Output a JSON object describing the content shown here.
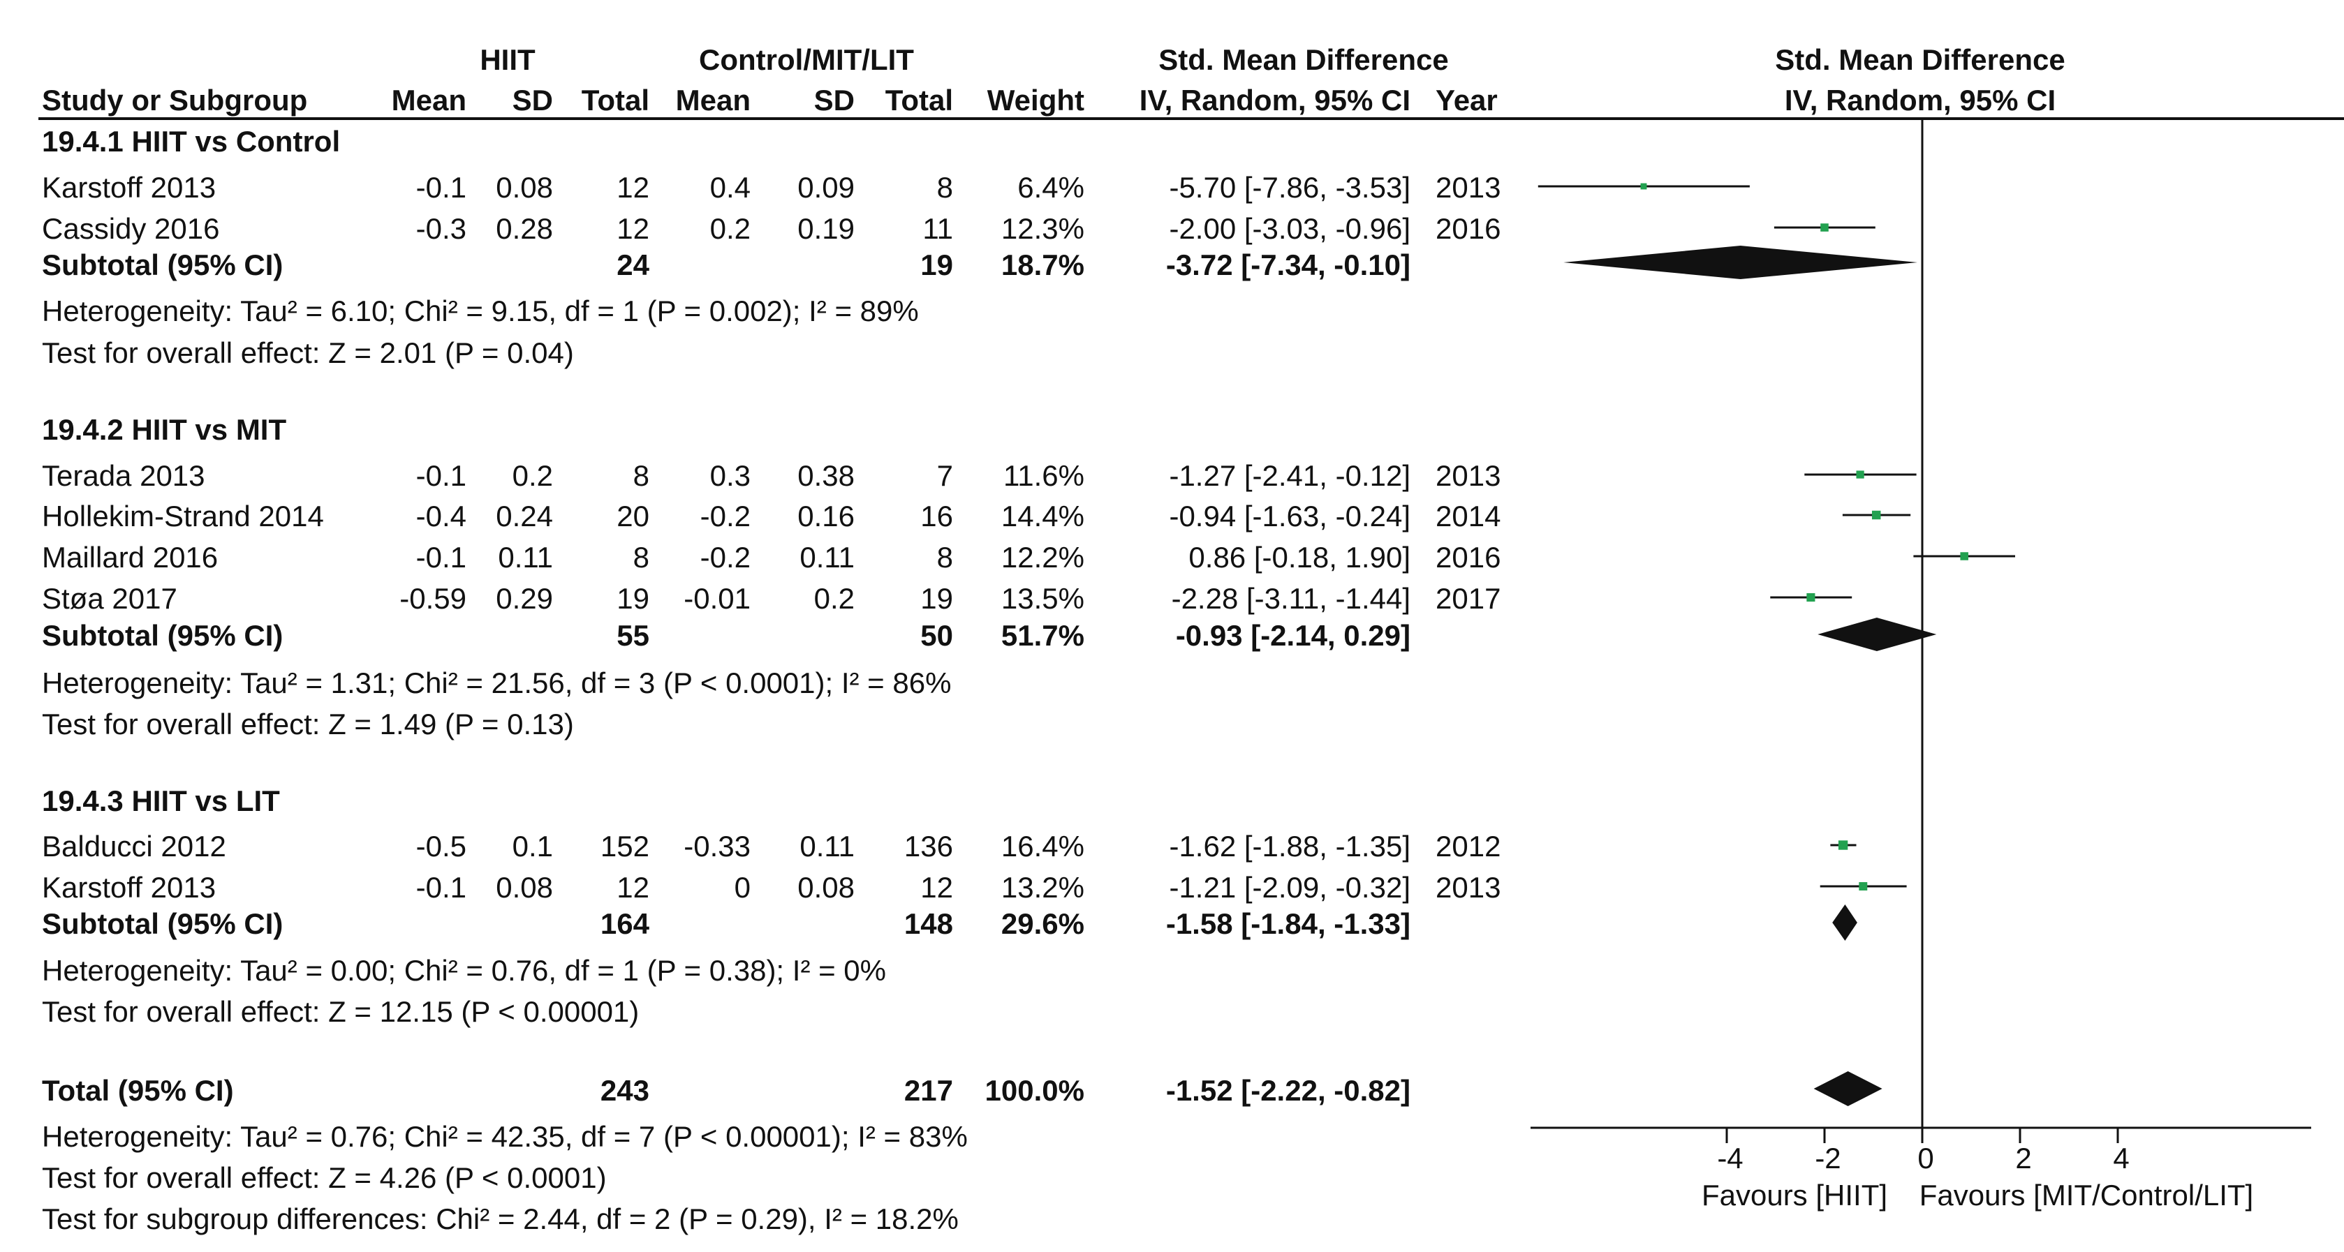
{
  "headers": {
    "hiit": "HIIT",
    "control": "Control/MIT/LIT",
    "smd_table": "Std. Mean Difference",
    "smd_table_sub": "IV, Random, 95% CI",
    "smd_plot": "Std. Mean Difference",
    "smd_plot_sub": "IV, Random, 95% CI",
    "study": "Study or Subgroup",
    "mean1": "Mean",
    "sd1": "SD",
    "total1": "Total",
    "mean2": "Mean",
    "sd2": "SD",
    "total2": "Total",
    "weight": "Weight",
    "year": "Year"
  },
  "groups": [
    {
      "title": "19.4.1 HIIT vs Control",
      "studies": [
        {
          "name": "Karstoff 2013",
          "m1": "-0.1",
          "sd1": "0.08",
          "n1": "12",
          "m2": "0.4",
          "sd2": "0.09",
          "n2": "8",
          "weight": "6.4%",
          "ci": "-5.70 [-7.86, -3.53]",
          "year": "2013"
        },
        {
          "name": "Cassidy 2016",
          "m1": "-0.3",
          "sd1": "0.28",
          "n1": "12",
          "m2": "0.2",
          "sd2": "0.19",
          "n2": "11",
          "weight": "12.3%",
          "ci": "-2.00 [-3.03, -0.96]",
          "year": "2016"
        }
      ],
      "subtotal": {
        "label": "Subtotal (95% CI)",
        "n1": "24",
        "n2": "19",
        "weight": "18.7%",
        "ci": "-3.72 [-7.34, -0.10]"
      },
      "het": "Heterogeneity: Tau² = 6.10; Chi² = 9.15, df = 1 (P = 0.002); I² = 89%",
      "effect": "Test for overall effect: Z = 2.01 (P = 0.04)"
    },
    {
      "title": "19.4.2 HIIT vs MIT",
      "studies": [
        {
          "name": "Terada 2013",
          "m1": "-0.1",
          "sd1": "0.2",
          "n1": "8",
          "m2": "0.3",
          "sd2": "0.38",
          "n2": "7",
          "weight": "11.6%",
          "ci": "-1.27 [-2.41, -0.12]",
          "year": "2013"
        },
        {
          "name": "Hollekim-Strand 2014",
          "m1": "-0.4",
          "sd1": "0.24",
          "n1": "20",
          "m2": "-0.2",
          "sd2": "0.16",
          "n2": "16",
          "weight": "14.4%",
          "ci": "-0.94 [-1.63, -0.24]",
          "year": "2014"
        },
        {
          "name": "Maillard 2016",
          "m1": "-0.1",
          "sd1": "0.11",
          "n1": "8",
          "m2": "-0.2",
          "sd2": "0.11",
          "n2": "8",
          "weight": "12.2%",
          "ci": "0.86 [-0.18, 1.90]",
          "year": "2016"
        },
        {
          "name": "Støa 2017",
          "m1": "-0.59",
          "sd1": "0.29",
          "n1": "19",
          "m2": "-0.01",
          "sd2": "0.2",
          "n2": "19",
          "weight": "13.5%",
          "ci": "-2.28 [-3.11, -1.44]",
          "year": "2017"
        }
      ],
      "subtotal": {
        "label": "Subtotal (95% CI)",
        "n1": "55",
        "n2": "50",
        "weight": "51.7%",
        "ci": "-0.93 [-2.14, 0.29]"
      },
      "het": "Heterogeneity: Tau² = 1.31; Chi² = 21.56, df = 3 (P < 0.0001); I² = 86%",
      "effect": "Test for overall effect: Z = 1.49 (P = 0.13)"
    },
    {
      "title": "19.4.3 HIIT vs LIT",
      "studies": [
        {
          "name": "Balducci 2012",
          "m1": "-0.5",
          "sd1": "0.1",
          "n1": "152",
          "m2": "-0.33",
          "sd2": "0.11",
          "n2": "136",
          "weight": "16.4%",
          "ci": "-1.62 [-1.88, -1.35]",
          "year": "2012"
        },
        {
          "name": "Karstoff 2013",
          "m1": "-0.1",
          "sd1": "0.08",
          "n1": "12",
          "m2": "0",
          "sd2": "0.08",
          "n2": "12",
          "weight": "13.2%",
          "ci": "-1.21 [-2.09, -0.32]",
          "year": "2013"
        }
      ],
      "subtotal": {
        "label": "Subtotal (95% CI)",
        "n1": "164",
        "n2": "148",
        "weight": "29.6%",
        "ci": "-1.58 [-1.84, -1.33]"
      },
      "het": "Heterogeneity: Tau² = 0.00; Chi² = 0.76, df = 1 (P = 0.38); I² = 0%",
      "effect": "Test for overall effect: Z = 12.15 (P < 0.00001)"
    }
  ],
  "total": {
    "label": "Total (95% CI)",
    "n1": "243",
    "n2": "217",
    "weight": "100.0%",
    "ci": "-1.52 [-2.22, -0.82]"
  },
  "total_het": "Heterogeneity: Tau² = 0.76; Chi² = 42.35, df = 7 (P < 0.00001); I² = 83%",
  "total_effect": "Test for overall effect: Z = 4.26 (P < 0.0001)",
  "subgroup_diff": "Test for subgroup differences: Chi² = 2.44, df = 2 (P = 0.29), I² = 18.2%",
  "chart_data": {
    "type": "forest",
    "title": "Std. Mean Difference",
    "subtitle": "IV, Random, 95% CI",
    "x_ticks": [
      -4,
      -2,
      0,
      2,
      4
    ],
    "xlim": [
      -8.1,
      8.1
    ],
    "xlabel_left": "Favours [HIIT]",
    "xlabel_right": "Favours [MIT/Control/LIT]",
    "colors": {
      "study_marker": "#22a150",
      "diamond": "#111111",
      "line": "#111111"
    },
    "studies": [
      {
        "group": "19.4.1 HIIT vs Control",
        "name": "Karstoff 2013",
        "est": -5.7,
        "lo": -7.86,
        "hi": -3.53,
        "weight": 6.4
      },
      {
        "group": "19.4.1 HIIT vs Control",
        "name": "Cassidy 2016",
        "est": -2.0,
        "lo": -3.03,
        "hi": -0.96,
        "weight": 12.3
      },
      {
        "group": "19.4.2 HIIT vs MIT",
        "name": "Terada 2013",
        "est": -1.27,
        "lo": -2.41,
        "hi": -0.12,
        "weight": 11.6
      },
      {
        "group": "19.4.2 HIIT vs MIT",
        "name": "Hollekim-Strand 2014",
        "est": -0.94,
        "lo": -1.63,
        "hi": -0.24,
        "weight": 14.4
      },
      {
        "group": "19.4.2 HIIT vs MIT",
        "name": "Maillard 2016",
        "est": 0.86,
        "lo": -0.18,
        "hi": 1.9,
        "weight": 12.2
      },
      {
        "group": "19.4.2 HIIT vs MIT",
        "name": "Støa 2017",
        "est": -2.28,
        "lo": -3.11,
        "hi": -1.44,
        "weight": 13.5
      },
      {
        "group": "19.4.3 HIIT vs LIT",
        "name": "Balducci 2012",
        "est": -1.62,
        "lo": -1.88,
        "hi": -1.35,
        "weight": 16.4
      },
      {
        "group": "19.4.3 HIIT vs LIT",
        "name": "Karstoff 2013",
        "est": -1.21,
        "lo": -2.09,
        "hi": -0.32,
        "weight": 13.2
      }
    ],
    "diamonds": [
      {
        "name": "Subtotal 19.4.1",
        "est": -3.72,
        "lo": -7.34,
        "hi": -0.1
      },
      {
        "name": "Subtotal 19.4.2",
        "est": -0.93,
        "lo": -2.14,
        "hi": 0.29
      },
      {
        "name": "Subtotal 19.4.3",
        "est": -1.58,
        "lo": -1.84,
        "hi": -1.33
      },
      {
        "name": "Total",
        "est": -1.52,
        "lo": -2.22,
        "hi": -0.82
      }
    ]
  }
}
